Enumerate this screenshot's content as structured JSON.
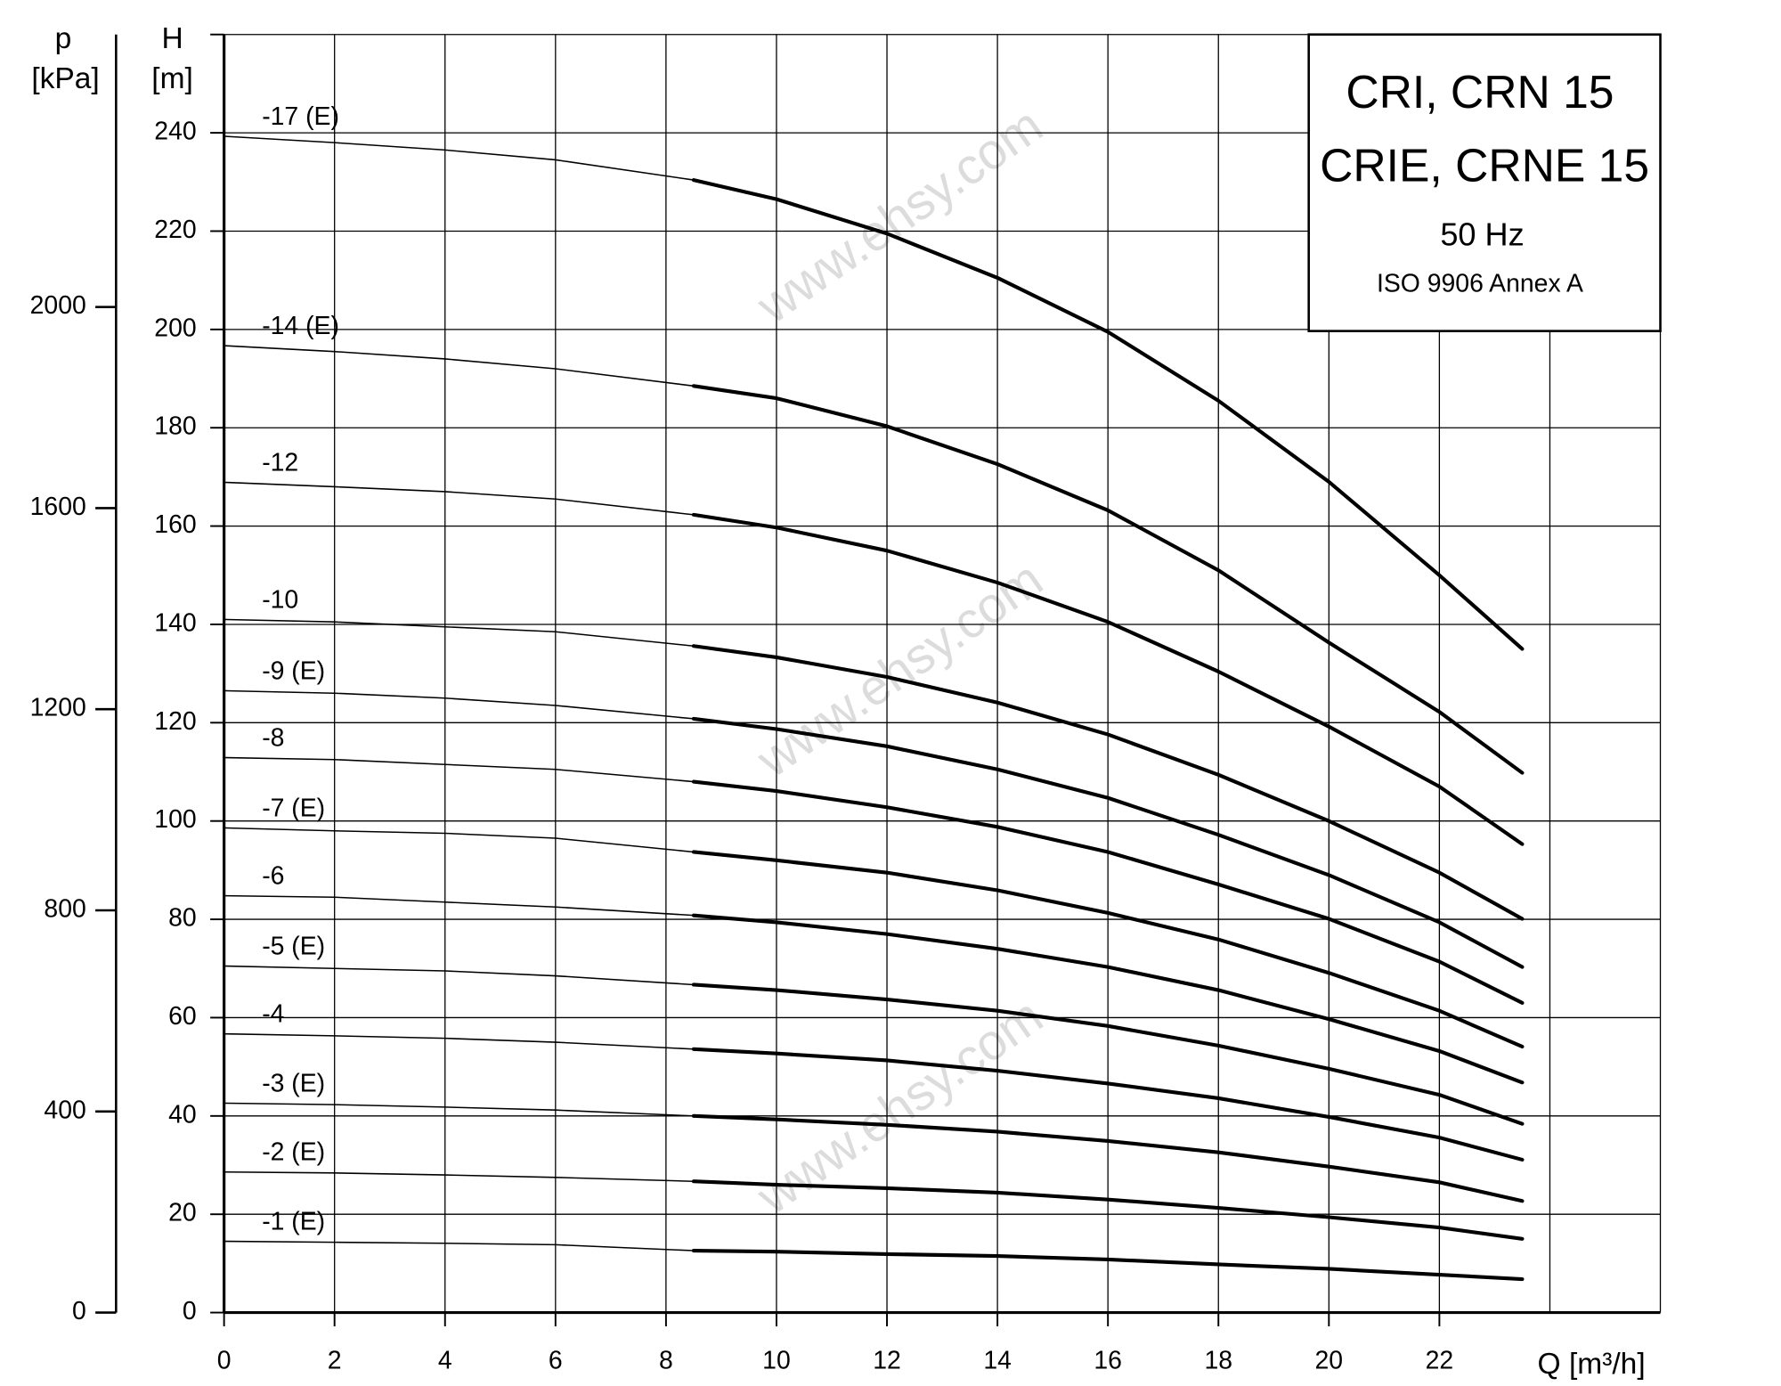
{
  "chart_data": {
    "type": "line",
    "title_lines": [
      "CRI, CRN 15",
      "CRIE, CRNE 15",
      "50 Hz",
      "ISO 9906 Annex A"
    ],
    "watermark": "www.ehsy.com",
    "x_label": "Q [m³/h]",
    "y_label": [
      "H",
      "[m]"
    ],
    "y2_label": [
      "p",
      "[kPa]"
    ],
    "x": [
      0,
      2,
      4,
      6,
      8.5,
      10,
      12,
      14,
      16,
      18,
      20,
      22,
      23.5
    ],
    "thick_from": 8.5,
    "xlim": [
      0,
      26
    ],
    "xticks": [
      0,
      2,
      4,
      6,
      8,
      10,
      12,
      14,
      16,
      18,
      20,
      22
    ],
    "xgrid": [
      0,
      2,
      4,
      6,
      8,
      10,
      12,
      14,
      16,
      18,
      20,
      22,
      24,
      26
    ],
    "ylim": [
      0,
      260
    ],
    "yticks": [
      0,
      20,
      40,
      60,
      80,
      100,
      120,
      140,
      160,
      180,
      200,
      220,
      240,
      260
    ],
    "ytick_labels_up_to": 240,
    "y2lim": [
      0,
      2542
    ],
    "y2ticks": [
      0,
      400,
      800,
      1200,
      1600,
      2000
    ],
    "grid": true,
    "color": "#000000",
    "series": [
      {
        "name": "-17 (E)",
        "values": [
          239.3,
          238,
          236.5,
          234.5,
          230.4,
          226.5,
          219.5,
          210.5,
          199.5,
          185.5,
          169,
          150,
          135
        ]
      },
      {
        "name": "-14 (E)",
        "values": [
          196.7,
          195.5,
          194,
          192,
          188.5,
          186,
          180.3,
          172.6,
          163.2,
          151,
          136.3,
          122.2,
          109.8
        ]
      },
      {
        "name": "-12",
        "values": [
          168.9,
          168,
          167,
          165.5,
          162.3,
          159.7,
          155,
          148.5,
          140.5,
          130.4,
          119.2,
          107,
          95.3
        ]
      },
      {
        "name": "-10",
        "values": [
          141,
          140.5,
          139.5,
          138.5,
          135.6,
          133.3,
          129.3,
          124.1,
          117.6,
          109.4,
          100,
          89.5,
          80.1
        ]
      },
      {
        "name": "-9 (E)",
        "values": [
          126.5,
          126,
          125,
          123.5,
          120.8,
          118.7,
          115.2,
          110.5,
          104.7,
          97.2,
          89,
          79.4,
          70.3
        ]
      },
      {
        "name": "-8",
        "values": [
          112.9,
          112.5,
          111.5,
          110.5,
          108,
          106.1,
          102.8,
          98.8,
          93.7,
          87.1,
          80.1,
          71.4,
          63
        ]
      },
      {
        "name": "-7 (E)",
        "values": [
          98.6,
          98,
          97.5,
          96.5,
          93.7,
          92,
          89.5,
          85.9,
          81.3,
          75.9,
          69.1,
          61.4,
          54.1
        ]
      },
      {
        "name": "-6",
        "values": [
          84.8,
          84.5,
          83.5,
          82.5,
          80.8,
          79.4,
          77,
          74,
          70.3,
          65.6,
          59.7,
          53.2,
          46.8
        ]
      },
      {
        "name": "-5 (E)",
        "values": [
          70.5,
          70,
          69.5,
          68.5,
          66.7,
          65.6,
          63.7,
          61.4,
          58.3,
          54.3,
          49.6,
          44.3,
          38.4
        ]
      },
      {
        "name": "-4",
        "values": [
          56.7,
          56.3,
          55.8,
          55,
          53.6,
          52.7,
          51.3,
          49.2,
          46.6,
          43.6,
          39.8,
          35.6,
          31.1
        ]
      },
      {
        "name": "-3 (E)",
        "values": [
          42.6,
          42.3,
          41.8,
          41.2,
          40,
          39.3,
          38.2,
          36.8,
          34.9,
          32.6,
          29.7,
          26.5,
          22.7
        ]
      },
      {
        "name": "-2 (E)",
        "values": [
          28.6,
          28.4,
          28,
          27.5,
          26.7,
          26,
          25.3,
          24.4,
          23,
          21.3,
          19.4,
          17.3,
          15
        ]
      },
      {
        "name": "-1 (E)",
        "values": [
          14.5,
          14.3,
          14.1,
          13.8,
          12.6,
          12.4,
          11.9,
          11.5,
          10.8,
          9.8,
          8.9,
          7.7,
          6.8
        ]
      }
    ]
  }
}
